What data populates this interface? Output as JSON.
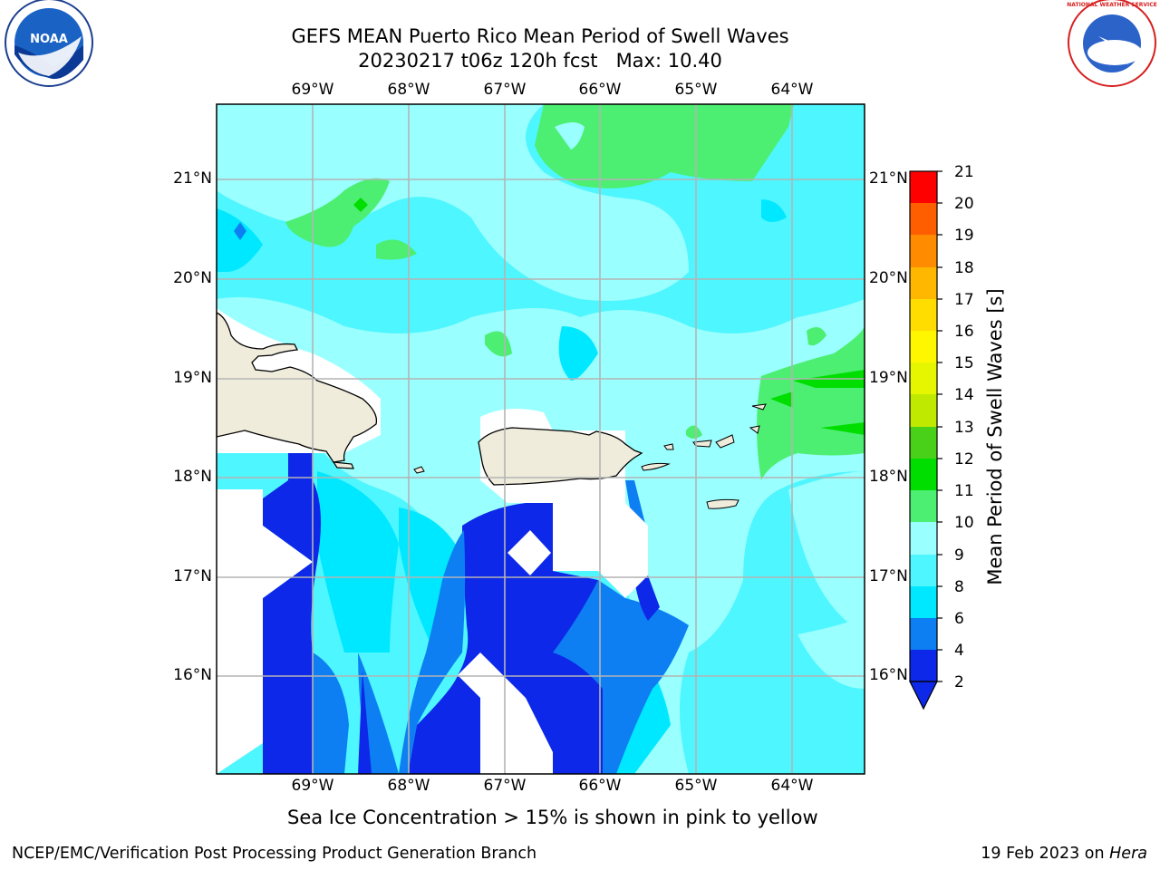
{
  "header": {
    "title_line1": "GEFS MEAN Puerto Rico Mean Period of Swell Waves",
    "title_line2": "20230217 t06z 120h fcst   Max: 10.40"
  },
  "logos": {
    "left": "NOAA",
    "right": "NATIONAL WEATHER SERVICE"
  },
  "map": {
    "lon_labels": [
      "69°W",
      "68°W",
      "67°W",
      "66°W",
      "65°W",
      "64°W"
    ],
    "lat_labels": [
      "21°N",
      "20°N",
      "19°N",
      "18°N",
      "17°N",
      "16°N"
    ]
  },
  "colorbar": {
    "label": "Mean Period of Swell Waves [s]",
    "ticks": [
      "2",
      "4",
      "6",
      "8",
      "9",
      "10",
      "11",
      "12",
      "13",
      "14",
      "15",
      "16",
      "17",
      "18",
      "19",
      "20",
      "21"
    ],
    "colors": [
      "#0d28e8",
      "#0d7ff2",
      "#00e8ff",
      "#4ef6ff",
      "#9affff",
      "#4cef72",
      "#00de00",
      "#49d11a",
      "#bfea00",
      "#e6f500",
      "#fff700",
      "#ffdd00",
      "#ffb700",
      "#ff8c00",
      "#ff5e00",
      "#ff3a00",
      "#ff0000"
    ]
  },
  "note": "Sea Ice Concentration > 15% is shown in pink to yellow",
  "footer": {
    "left": "NCEP/EMC/Verification Post Processing Product Generation Branch",
    "date": "19 Feb 2023 on ",
    "machine": "Hera"
  }
}
